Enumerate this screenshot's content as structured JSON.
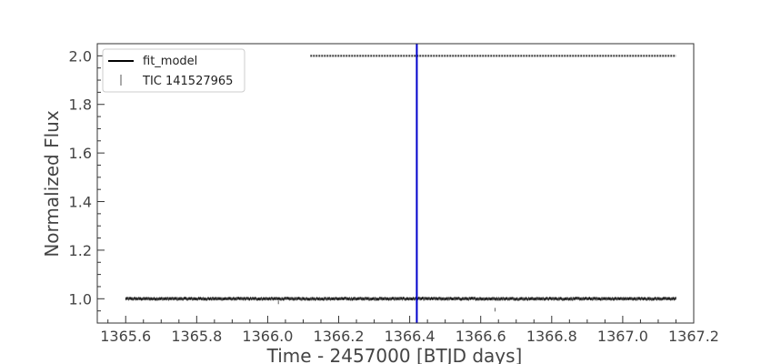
{
  "chart_data": {
    "type": "scatter",
    "title": "",
    "xlabel": "Time - 2457000 [BTJD days]",
    "ylabel": "Normalized Flux",
    "xlim": [
      1365.52,
      1367.2
    ],
    "ylim": [
      0.9,
      2.05
    ],
    "xticks": [
      "1365.6",
      "1365.8",
      "1366.0",
      "1366.2",
      "1366.4",
      "1366.6",
      "1366.8",
      "1367.0",
      "1367.2"
    ],
    "yticks": [
      "1.0",
      "1.2",
      "1.4",
      "1.6",
      "1.8",
      "2.0"
    ],
    "grid": false,
    "legend": "top-left",
    "vertical_line": {
      "x": 1366.42,
      "color": "#0000cc"
    },
    "series": [
      {
        "name": "fit_model",
        "kind": "line",
        "color": "#000000",
        "x": [
          1366.12,
          1367.15
        ],
        "y": [
          2.0,
          2.0
        ]
      },
      {
        "name": "TIC 141527965",
        "kind": "errorbar-points",
        "color": "#222222",
        "x_range": [
          1365.6,
          1367.15
        ],
        "baseline": 1.0,
        "scatter": 0.003,
        "dips": [
          {
            "x": 1366.03,
            "y": 0.985
          },
          {
            "x": 1366.64,
            "y": 0.955
          }
        ]
      }
    ]
  },
  "legend": {
    "items": [
      "fit_model",
      "TIC 141527965"
    ]
  }
}
